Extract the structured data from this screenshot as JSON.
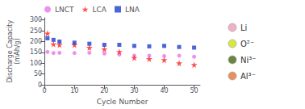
{
  "chart_data": {
    "type": "scatter",
    "xlabel": "Cycle Number",
    "ylabel": "Discharge Capacity\n(mAh/g)",
    "xlim": [
      0,
      52
    ],
    "xticks": [
      0,
      10,
      20,
      30,
      40,
      50
    ],
    "ylim": [
      0,
      310
    ],
    "yticks": [
      0,
      50,
      100,
      150,
      200,
      250,
      300
    ],
    "grid": false,
    "legend": "top",
    "series": [
      {
        "name": "LNCT",
        "color": "#e975e9",
        "marker": "circle",
        "x": [
          1,
          3,
          5,
          10,
          15,
          20,
          25,
          30,
          35,
          40,
          45,
          50
        ],
        "values": [
          152,
          147,
          148,
          147,
          148,
          145,
          140,
          135,
          135,
          133,
          135,
          130
        ]
      },
      {
        "name": "LCA",
        "color": "#ff2020",
        "marker": "star",
        "x": [
          1,
          3,
          5,
          10,
          15,
          20,
          25,
          30,
          35,
          40,
          45,
          50
        ],
        "values": [
          238,
          188,
          185,
          185,
          172,
          165,
          153,
          125,
          120,
          115,
          100,
          93
        ]
      },
      {
        "name": "LNA",
        "color": "#1f3fcc",
        "marker": "square",
        "x": [
          1,
          3,
          5,
          10,
          15,
          20,
          25,
          30,
          35,
          40,
          45,
          50
        ],
        "values": [
          215,
          208,
          200,
          195,
          190,
          185,
          185,
          180,
          178,
          180,
          175,
          172
        ]
      }
    ],
    "annotations": [
      {
        "text": "Li",
        "color": "#f0b0c8"
      },
      {
        "text": "O²⁻",
        "color": "#d4e840"
      },
      {
        "text": "Ni³⁻",
        "color": "#6b8540"
      },
      {
        "text": "Al³⁻",
        "color": "#e89060"
      }
    ]
  }
}
